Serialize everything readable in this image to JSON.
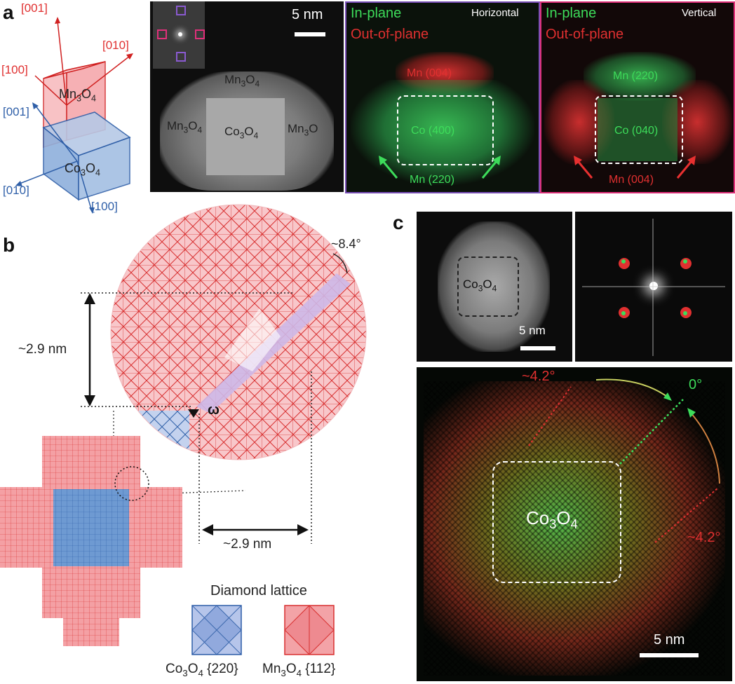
{
  "panels": {
    "a": "a",
    "b": "b",
    "c": "c"
  },
  "a": {
    "crystal": {
      "mn_dir_001": "[001]",
      "mn_dir_010": "[010]",
      "mn_dir_100": "[100]",
      "co_dir_001": "[001]",
      "co_dir_010": "[010]",
      "co_dir_100": "[100]",
      "mn_label": "Mn",
      "mn_sub1": "3",
      "mn_o": "O",
      "mn_sub2": "4",
      "co_label": "Co",
      "co_sub1": "3",
      "co_o": "O",
      "co_sub2": "4"
    },
    "haadf": {
      "scale": "5 nm",
      "mn_top": "Mn",
      "mn_left": "Mn",
      "co_center": "Co",
      "mn_right": "Mn",
      "sub3": "3",
      "sub4": "4",
      "o": "O"
    },
    "horizontal": {
      "title": "Horizontal",
      "in_plane": "In-plane",
      "out_plane": "Out-of-plane",
      "mn_004": "Mn (004)",
      "co_400": "Co (400)",
      "mn_220": "Mn (220)"
    },
    "vertical": {
      "title": "Vertical",
      "in_plane": "In-plane",
      "out_plane": "Out-of-plane",
      "mn_220": "Mn (220)",
      "co_040": "Co (040)",
      "mn_004": "Mn (004)"
    }
  },
  "b": {
    "angle": "~8.4°",
    "height": "~2.9 nm",
    "width": "~2.9 nm",
    "omega": "ω",
    "legend_title": "Diamond lattice",
    "legend_co": "Co",
    "legend_co_sub1": "3",
    "legend_co_o": "O",
    "legend_co_sub2": "4",
    "legend_co_plane": "{220}",
    "legend_mn": "Mn",
    "legend_mn_sub1": "3",
    "legend_mn_o": "O",
    "legend_mn_sub2": "4",
    "legend_mn_plane": "{112}"
  },
  "c": {
    "haadf_label": "Co",
    "haadf_sub1": "3",
    "haadf_o": "O",
    "haadf_sub2": "4",
    "haadf_scale": "5 nm",
    "map_label": "Co",
    "map_sub1": "3",
    "map_o": "O",
    "map_sub2": "4",
    "angle_top": "~4.2°",
    "angle_zero": "0°",
    "angle_right": "~4.2°",
    "map_scale": "5 nm"
  },
  "colors": {
    "red": "#e03030",
    "green": "#3ddc5a",
    "blue": "#2f5fa8",
    "pink": "#f5a3a8",
    "purple": "#6a3fa0",
    "magenta": "#e0307a"
  }
}
